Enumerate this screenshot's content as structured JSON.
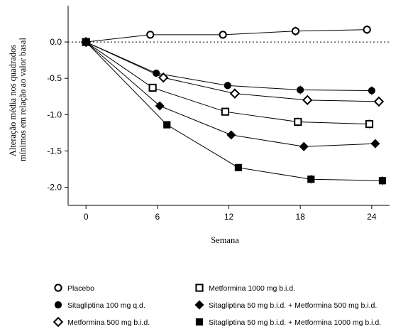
{
  "chart_data": {
    "type": "line",
    "title": "",
    "xlabel": "Semana",
    "ylabel": "Alteração média nos quadrados mínimos em relação ao valor basal",
    "ylabel_lines": [
      "Alteração média nos quadrados",
      "mínimos em relação ao valor basal"
    ],
    "xlim": [
      -1.5,
      25.5
    ],
    "ylim": [
      -2.25,
      0.5
    ],
    "xticks": [
      0,
      6,
      12,
      18,
      24
    ],
    "xtick_labels": [
      "0",
      "6",
      "12",
      "18",
      "24"
    ],
    "yticks": [
      0.0,
      -0.5,
      -1.0,
      -1.5,
      -2.0
    ],
    "ytick_labels": [
      "0.0",
      "-0.5",
      "-1.0",
      "-1.5",
      "-2.0"
    ],
    "reference_line": 0,
    "grid": false,
    "legend_position": "bottom",
    "series": [
      {
        "name": "Placebo",
        "marker": "open-circle",
        "x": [
          0,
          5.4,
          11.5,
          17.6,
          23.6
        ],
        "y": [
          0.0,
          0.1,
          0.1,
          0.15,
          0.17
        ],
        "err": [
          0.03,
          0.04,
          0.05,
          0.06,
          0.06
        ]
      },
      {
        "name": "Sitagliptina 100 mg q.d.",
        "marker": "filled-circle",
        "x": [
          0,
          5.9,
          11.9,
          18.0,
          24.0
        ],
        "y": [
          0.0,
          -0.43,
          -0.6,
          -0.66,
          -0.67
        ],
        "err": [
          0.03,
          0.04,
          0.05,
          0.06,
          0.06
        ]
      },
      {
        "name": "Metformina 500 mg b.i.d.",
        "marker": "open-diamond",
        "x": [
          0,
          6.5,
          12.5,
          18.6,
          24.6
        ],
        "y": [
          0.0,
          -0.49,
          -0.71,
          -0.8,
          -0.82
        ],
        "err": [
          0.03,
          0.04,
          0.05,
          0.06,
          0.06
        ]
      },
      {
        "name": "Metformina 1000 mg b.i.d.",
        "marker": "open-square",
        "x": [
          0,
          5.6,
          11.7,
          17.8,
          23.8
        ],
        "y": [
          0.0,
          -0.63,
          -0.96,
          -1.1,
          -1.13
        ],
        "err": [
          0.03,
          0.04,
          0.05,
          0.06,
          0.06
        ]
      },
      {
        "name": "Sitagliptina 50 mg b.i.d. + Metformina 500 mg b.i.d.",
        "marker": "filled-diamond",
        "x": [
          0,
          6.2,
          12.2,
          18.3,
          24.3
        ],
        "y": [
          0.0,
          -0.88,
          -1.28,
          -1.44,
          -1.4
        ],
        "err": [
          0.03,
          0.04,
          0.05,
          0.06,
          0.06
        ]
      },
      {
        "name": "Sitagliptina 50 mg b.i.d. + Metformina 1000 mg b.i.d.",
        "marker": "filled-square",
        "x": [
          0,
          6.8,
          12.8,
          18.9,
          24.9
        ],
        "y": [
          0.0,
          -1.14,
          -1.73,
          -1.89,
          -1.91
        ],
        "err": [
          0.03,
          0.04,
          0.05,
          0.06,
          0.06
        ]
      }
    ]
  }
}
